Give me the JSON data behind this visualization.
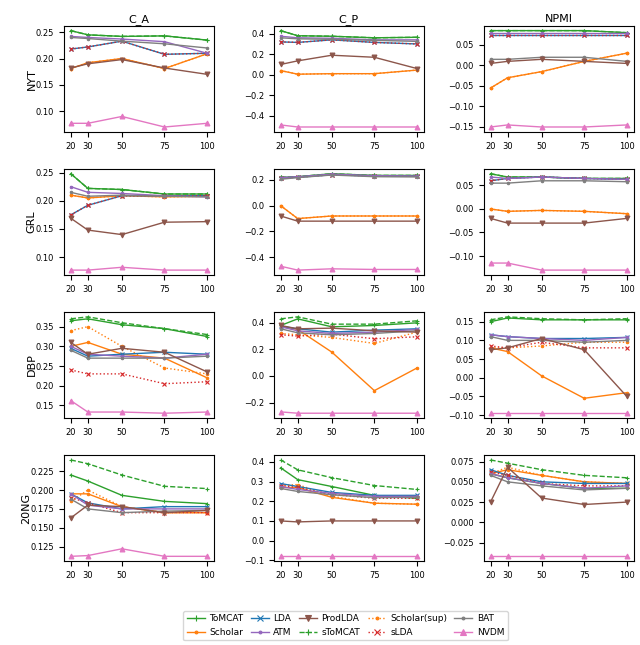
{
  "x": [
    20,
    30,
    50,
    75,
    100
  ],
  "col_titles": [
    "C_A",
    "C_P",
    "NPMI"
  ],
  "row_titles": [
    "NYT",
    "GRL",
    "DBP",
    "20NG"
  ],
  "series": {
    "ToMCAT": {
      "color": "#2ca02c",
      "linestyle": "-",
      "marker": "+",
      "linewidth": 1.5,
      "markersize": 5
    },
    "sToMCAT": {
      "color": "#2ca02c",
      "linestyle": "--",
      "marker": "+",
      "linewidth": 1.5,
      "markersize": 5
    },
    "Scholar": {
      "color": "#ff7f0e",
      "linestyle": "-",
      "marker": ".",
      "linewidth": 1.5,
      "markersize": 5
    },
    "Scholar(sup)": {
      "color": "#ff7f0e",
      "linestyle": "--",
      "marker": ".",
      "linewidth": 1.5,
      "markersize": 5
    },
    "LDA": {
      "color": "#1f77b4",
      "linestyle": "-",
      "marker": "x",
      "linewidth": 1.5,
      "markersize": 5
    },
    "sLDA": {
      "color": "#d62728",
      "linestyle": "--",
      "marker": "x",
      "linewidth": 1.5,
      "markersize": 5
    },
    "ATM": {
      "color": "#9467bd",
      "linestyle": "-",
      "marker": ".",
      "linewidth": 1.5,
      "markersize": 5
    },
    "BAT": {
      "color": "#7f7f7f",
      "linestyle": "-",
      "marker": ".",
      "linewidth": 1.5,
      "markersize": 5
    },
    "ProdLDA": {
      "color": "#8c564b",
      "linestyle": "-",
      "marker": "v",
      "linewidth": 1.5,
      "markersize": 5
    },
    "NVDM": {
      "color": "#e377c2",
      "linestyle": "-",
      "marker": "^",
      "linewidth": 1.5,
      "markersize": 5
    }
  },
  "data": {
    "NYT": {
      "C_A": {
        "ToMCAT": [
          0.253,
          0.245,
          0.242,
          0.243,
          0.235
        ],
        "sToMCAT": [
          0.253,
          0.245,
          0.242,
          0.243,
          0.235
        ],
        "Scholar": [
          0.181,
          0.192,
          0.2,
          0.181,
          0.209
        ],
        "Scholar(sup)": [
          0.181,
          0.192,
          0.2,
          0.181,
          0.209
        ],
        "LDA": [
          0.218,
          0.222,
          0.233,
          0.208,
          0.21
        ],
        "sLDA": [
          0.218,
          0.222,
          0.233,
          0.208,
          0.21
        ],
        "ATM": [
          0.242,
          0.24,
          0.237,
          0.232,
          0.21
        ],
        "BAT": [
          0.24,
          0.238,
          0.233,
          0.228,
          0.22
        ],
        "ProdLDA": [
          0.182,
          0.19,
          0.198,
          0.182,
          0.17
        ],
        "NVDM": [
          0.077,
          0.077,
          0.09,
          0.07,
          0.077
        ]
      },
      "C_P": {
        "ToMCAT": [
          0.43,
          0.38,
          0.375,
          0.36,
          0.365
        ],
        "sToMCAT": [
          0.43,
          0.38,
          0.375,
          0.36,
          0.365
        ],
        "Scholar": [
          0.04,
          0.005,
          0.01,
          0.01,
          0.045
        ],
        "Scholar(sup)": [
          0.04,
          0.005,
          0.01,
          0.01,
          0.045
        ],
        "LDA": [
          0.32,
          0.315,
          0.34,
          0.315,
          0.3
        ],
        "sLDA": [
          0.32,
          0.315,
          0.34,
          0.315,
          0.3
        ],
        "ATM": [
          0.375,
          0.36,
          0.355,
          0.34,
          0.34
        ],
        "BAT": [
          0.36,
          0.35,
          0.345,
          0.335,
          0.325
        ],
        "ProdLDA": [
          0.1,
          0.135,
          0.19,
          0.17,
          0.06
        ],
        "NVDM": [
          -0.49,
          -0.51,
          -0.51,
          -0.51,
          -0.51
        ]
      },
      "NPMI": {
        "ToMCAT": [
          0.085,
          0.085,
          0.085,
          0.085,
          0.08
        ],
        "sToMCAT": [
          0.085,
          0.085,
          0.085,
          0.085,
          0.08
        ],
        "Scholar": [
          -0.055,
          -0.03,
          -0.015,
          0.01,
          0.03
        ],
        "Scholar(sup)": [
          -0.055,
          -0.03,
          -0.015,
          0.01,
          0.03
        ],
        "LDA": [
          0.075,
          0.075,
          0.075,
          0.075,
          0.075
        ],
        "sLDA": [
          0.075,
          0.075,
          0.075,
          0.075,
          0.075
        ],
        "ATM": [
          0.08,
          0.08,
          0.08,
          0.08,
          0.08
        ],
        "BAT": [
          0.015,
          0.015,
          0.02,
          0.02,
          0.01
        ],
        "ProdLDA": [
          0.005,
          0.01,
          0.015,
          0.01,
          0.005
        ],
        "NVDM": [
          -0.15,
          -0.145,
          -0.15,
          -0.15,
          -0.145
        ]
      }
    },
    "GRL": {
      "C_A": {
        "ToMCAT": [
          0.248,
          0.222,
          0.22,
          0.212,
          0.212
        ],
        "sToMCAT": [
          0.248,
          0.222,
          0.22,
          0.212,
          0.212
        ],
        "Scholar": [
          0.21,
          0.205,
          0.209,
          0.207,
          0.208
        ],
        "Scholar(sup)": [
          0.21,
          0.205,
          0.209,
          0.207,
          0.208
        ],
        "LDA": [
          0.175,
          0.192,
          0.209,
          0.209,
          0.209
        ],
        "sLDA": [
          0.175,
          0.192,
          0.209,
          0.209,
          0.209
        ],
        "ATM": [
          0.225,
          0.215,
          0.213,
          0.209,
          0.207
        ],
        "BAT": [
          0.215,
          0.208,
          0.21,
          0.208,
          0.207
        ],
        "ProdLDA": [
          0.169,
          0.148,
          0.14,
          0.162,
          0.163
        ],
        "NVDM": [
          0.077,
          0.077,
          0.082,
          0.077,
          0.077
        ]
      },
      "C_P": {
        "ToMCAT": [
          0.22,
          0.225,
          0.248,
          0.235,
          0.235
        ],
        "sToMCAT": [
          0.22,
          0.225,
          0.248,
          0.235,
          0.235
        ],
        "Scholar": [
          0.0,
          -0.1,
          -0.08,
          -0.08,
          -0.08
        ],
        "Scholar(sup)": [
          0.0,
          -0.1,
          -0.08,
          -0.08,
          -0.08
        ],
        "LDA": [
          0.215,
          0.22,
          0.24,
          0.23,
          0.228
        ],
        "sLDA": [
          0.215,
          0.22,
          0.24,
          0.23,
          0.228
        ],
        "ATM": [
          0.218,
          0.225,
          0.245,
          0.233,
          0.23
        ],
        "BAT": [
          0.205,
          0.218,
          0.238,
          0.225,
          0.223
        ],
        "ProdLDA": [
          -0.08,
          -0.12,
          -0.12,
          -0.12,
          -0.12
        ],
        "NVDM": [
          -0.47,
          -0.5,
          -0.49,
          -0.495,
          -0.495
        ]
      },
      "NPMI": {
        "ToMCAT": [
          0.075,
          0.068,
          0.068,
          0.065,
          0.065
        ],
        "sToMCAT": [
          0.075,
          0.068,
          0.068,
          0.065,
          0.065
        ],
        "Scholar": [
          0.0,
          -0.005,
          -0.003,
          -0.005,
          -0.01
        ],
        "Scholar(sup)": [
          0.0,
          -0.005,
          -0.003,
          -0.005,
          -0.01
        ],
        "LDA": [
          0.06,
          0.065,
          0.068,
          0.065,
          0.063
        ],
        "sLDA": [
          0.06,
          0.065,
          0.068,
          0.065,
          0.063
        ],
        "ATM": [
          0.068,
          0.065,
          0.068,
          0.065,
          0.063
        ],
        "BAT": [
          0.055,
          0.055,
          0.06,
          0.06,
          0.058
        ],
        "ProdLDA": [
          -0.02,
          -0.03,
          -0.03,
          -0.03,
          -0.02
        ],
        "NVDM": [
          -0.115,
          -0.115,
          -0.13,
          -0.13,
          -0.13
        ]
      }
    },
    "DBP": {
      "C_A": {
        "ToMCAT": [
          0.365,
          0.37,
          0.355,
          0.345,
          0.325
        ],
        "sToMCAT": [
          0.37,
          0.375,
          0.36,
          0.345,
          0.33
        ],
        "Scholar": [
          0.3,
          0.31,
          0.28,
          0.27,
          0.22
        ],
        "Scholar(sup)": [
          0.34,
          0.35,
          0.3,
          0.245,
          0.23
        ],
        "LDA": [
          0.295,
          0.275,
          0.28,
          0.285,
          0.28
        ],
        "sLDA": [
          0.24,
          0.23,
          0.23,
          0.205,
          0.21
        ],
        "ATM": [
          0.3,
          0.28,
          0.275,
          0.27,
          0.28
        ],
        "BAT": [
          0.29,
          0.27,
          0.27,
          0.27,
          0.275
        ],
        "ProdLDA": [
          0.31,
          0.28,
          0.295,
          0.285,
          0.235
        ],
        "NVDM": [
          0.162,
          0.133,
          0.133,
          0.13,
          0.133
        ]
      },
      "C_P": {
        "ToMCAT": [
          0.38,
          0.43,
          0.37,
          0.38,
          0.4
        ],
        "sToMCAT": [
          0.43,
          0.445,
          0.39,
          0.39,
          0.415
        ],
        "Scholar": [
          0.375,
          0.35,
          0.18,
          -0.11,
          0.06
        ],
        "Scholar(sup)": [
          0.32,
          0.31,
          0.29,
          0.245,
          0.33
        ],
        "LDA": [
          0.375,
          0.355,
          0.33,
          0.345,
          0.355
        ],
        "sLDA": [
          0.31,
          0.3,
          0.315,
          0.28,
          0.295
        ],
        "ATM": [
          0.37,
          0.34,
          0.32,
          0.33,
          0.35
        ],
        "BAT": [
          0.355,
          0.325,
          0.31,
          0.32,
          0.34
        ],
        "ProdLDA": [
          0.38,
          0.355,
          0.36,
          0.34,
          0.33
        ],
        "NVDM": [
          -0.27,
          -0.28,
          -0.28,
          -0.28,
          -0.28
        ]
      },
      "NPMI": {
        "ToMCAT": [
          0.15,
          0.16,
          0.155,
          0.155,
          0.155
        ],
        "sToMCAT": [
          0.155,
          0.163,
          0.158,
          0.155,
          0.158
        ],
        "Scholar": [
          0.08,
          0.07,
          0.005,
          -0.055,
          -0.04
        ],
        "Scholar(sup)": [
          0.08,
          0.08,
          0.085,
          0.095,
          0.095
        ],
        "LDA": [
          0.115,
          0.11,
          0.105,
          0.105,
          0.108
        ],
        "sLDA": [
          0.085,
          0.08,
          0.095,
          0.08,
          0.08
        ],
        "ATM": [
          0.115,
          0.11,
          0.105,
          0.1,
          0.108
        ],
        "BAT": [
          0.11,
          0.1,
          0.1,
          0.095,
          0.1
        ],
        "ProdLDA": [
          0.075,
          0.08,
          0.105,
          0.075,
          -0.05
        ],
        "NVDM": [
          -0.095,
          -0.095,
          -0.095,
          -0.095,
          -0.095
        ]
      }
    },
    "20NG": {
      "C_A": {
        "ToMCAT": [
          0.22,
          0.212,
          0.193,
          0.185,
          0.182
        ],
        "sToMCAT": [
          0.24,
          0.235,
          0.22,
          0.205,
          0.202
        ],
        "Scholar": [
          0.195,
          0.195,
          0.178,
          0.17,
          0.17
        ],
        "Scholar(sup)": [
          0.185,
          0.2,
          0.178,
          0.17,
          0.17
        ],
        "LDA": [
          0.195,
          0.183,
          0.175,
          0.178,
          0.178
        ],
        "sLDA": [
          0.19,
          0.183,
          0.17,
          0.17,
          0.17
        ],
        "ATM": [
          0.195,
          0.18,
          0.175,
          0.175,
          0.175
        ],
        "BAT": [
          0.188,
          0.175,
          0.17,
          0.172,
          0.173
        ],
        "ProdLDA": [
          0.163,
          0.18,
          0.178,
          0.17,
          0.173
        ],
        "NVDM": [
          0.112,
          0.113,
          0.122,
          0.112,
          0.112
        ]
      },
      "C_P": {
        "ToMCAT": [
          0.37,
          0.31,
          0.275,
          0.23,
          0.215
        ],
        "sToMCAT": [
          0.41,
          0.36,
          0.32,
          0.28,
          0.26
        ],
        "Scholar": [
          0.27,
          0.27,
          0.22,
          0.19,
          0.185
        ],
        "Scholar(sup)": [
          0.28,
          0.285,
          0.225,
          0.19,
          0.185
        ],
        "LDA": [
          0.29,
          0.275,
          0.245,
          0.23,
          0.23
        ],
        "sLDA": [
          0.28,
          0.27,
          0.235,
          0.215,
          0.215
        ],
        "ATM": [
          0.275,
          0.26,
          0.24,
          0.225,
          0.225
        ],
        "BAT": [
          0.265,
          0.25,
          0.233,
          0.218,
          0.22
        ],
        "ProdLDA": [
          0.1,
          0.095,
          0.1,
          0.1,
          0.1
        ],
        "NVDM": [
          -0.08,
          -0.08,
          -0.08,
          -0.08,
          -0.08
        ]
      },
      "NPMI": {
        "ToMCAT": [
          0.06,
          0.055,
          0.048,
          0.042,
          0.042
        ],
        "sToMCAT": [
          0.077,
          0.073,
          0.065,
          0.058,
          0.055
        ],
        "Scholar": [
          0.06,
          0.065,
          0.058,
          0.05,
          0.048
        ],
        "Scholar(sup)": [
          0.06,
          0.068,
          0.058,
          0.05,
          0.048
        ],
        "LDA": [
          0.065,
          0.058,
          0.05,
          0.048,
          0.048
        ],
        "sLDA": [
          0.062,
          0.058,
          0.048,
          0.045,
          0.045
        ],
        "ATM": [
          0.06,
          0.055,
          0.048,
          0.042,
          0.045
        ],
        "BAT": [
          0.058,
          0.05,
          0.045,
          0.04,
          0.042
        ],
        "ProdLDA": [
          0.025,
          0.068,
          0.03,
          0.022,
          0.025
        ],
        "NVDM": [
          -0.042,
          -0.042,
          -0.042,
          -0.042,
          -0.042
        ]
      }
    }
  }
}
